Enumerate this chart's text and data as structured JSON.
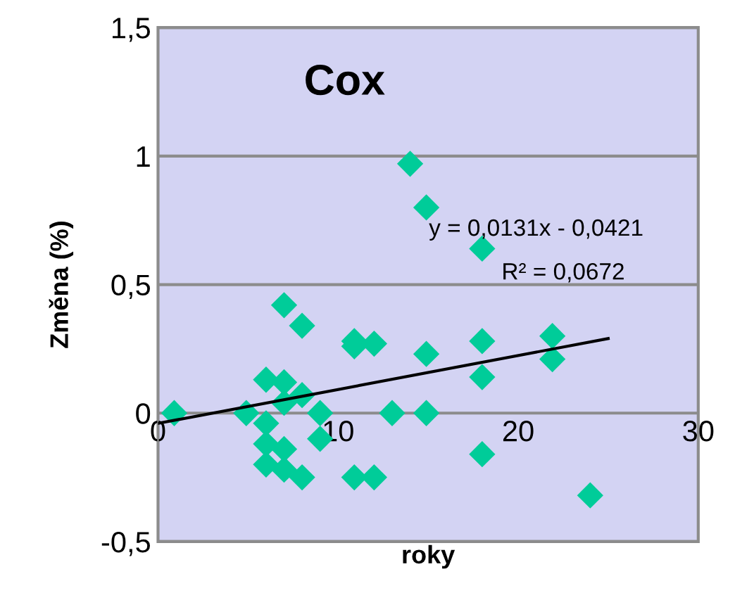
{
  "chart_data": {
    "type": "scatter",
    "title": "Cox",
    "xlabel": "roky",
    "ylabel": "Změna (%)",
    "annotations": [
      "y = 0,0131x - 0,0421",
      "R² = 0,0672"
    ],
    "xlim": [
      0,
      30
    ],
    "xticks": [
      0,
      10,
      20,
      30
    ],
    "ylim": [
      -0.5,
      1.5
    ],
    "yticks": [
      {
        "value": -0.5,
        "label": "-0,5"
      },
      0,
      {
        "value": 0.5,
        "label": "0,5"
      },
      1,
      {
        "value": 1.5,
        "label": "1,5"
      }
    ],
    "grid": "y",
    "legend": false,
    "series": [
      {
        "marker": "diamond",
        "color": "#00cc99",
        "x": [
          0.9,
          14.0,
          14.9,
          18.0,
          7.0,
          8.0,
          10.9,
          10.9,
          12.0,
          14.9,
          18.0,
          21.9,
          21.9,
          18.0,
          6.0,
          7.0,
          8.0,
          7.0,
          4.9,
          9.0,
          13.0,
          14.9,
          6.0,
          9.0,
          6.0,
          7.0,
          6.0,
          7.0,
          8.0,
          10.9,
          12.0,
          18.0,
          24.0
        ],
        "values": [
          0.0,
          0.97,
          0.8,
          0.64,
          0.42,
          0.34,
          0.28,
          0.26,
          0.27,
          0.23,
          0.28,
          0.3,
          0.21,
          0.14,
          0.13,
          0.12,
          0.07,
          0.04,
          0.0,
          0.0,
          0.0,
          0.0,
          -0.04,
          -0.1,
          -0.12,
          -0.14,
          -0.2,
          -0.22,
          -0.25,
          -0.25,
          -0.25,
          -0.16,
          -0.32
        ]
      },
      {
        "type": "line",
        "color": "#000000",
        "x": [
          0,
          25
        ],
        "values": [
          -0.04,
          0.29
        ]
      }
    ]
  }
}
